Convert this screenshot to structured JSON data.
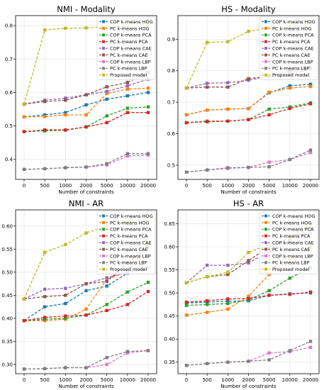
{
  "colors": {
    "COP k-means HOG": "#1f77b4",
    "PC k-means HOG": "#ff7f0e",
    "COP k-means PCA": "#2ca02c",
    "PC k-means PCA": "#d62728",
    "COP k-means CAE": "#9467bd",
    "PC k-means CAE": "#8c564b",
    "COP k-means LBP": "#e377c2",
    "PC k-means LBP": "#7f7f7f",
    "Proposed model": "#bcbd22"
  },
  "chart_data": [
    {
      "type": "line",
      "title": "NMI - Modality",
      "xlabel": "Number of constraints",
      "ylabel": "",
      "categories": [
        "0",
        "500",
        "1000",
        "2000",
        "5000",
        "10000",
        "20000"
      ],
      "ylim": [
        0.34,
        0.83
      ],
      "yticks": [
        "0.4",
        "0.5",
        "0.6",
        "0.7",
        "0.8"
      ],
      "grid": true,
      "legend_position": "top-right",
      "series": [
        {
          "name": "COP k-means HOG",
          "values": [
            0.527,
            0.533,
            0.54,
            0.563,
            0.58,
            0.59,
            0.6
          ]
        },
        {
          "name": "PC k-means HOG",
          "values": [
            0.527,
            0.528,
            0.533,
            0.533,
            0.597,
            0.61,
            0.613
          ]
        },
        {
          "name": "COP k-means PCA",
          "values": [
            0.483,
            0.485,
            0.487,
            0.497,
            0.53,
            0.553,
            0.557
          ]
        },
        {
          "name": "PC k-means PCA",
          "values": [
            0.483,
            0.488,
            0.488,
            0.497,
            0.51,
            0.54,
            0.54
          ]
        },
        {
          "name": "COP k-means CAE",
          "values": [
            0.565,
            0.577,
            0.583,
            0.593,
            0.603,
            0.62,
            0.64
          ]
        },
        {
          "name": "PC k-means CAE",
          "values": [
            0.565,
            0.573,
            0.577,
            0.593,
            0.617,
            0.63,
            0.66
          ]
        },
        {
          "name": "COP k-means LBP",
          "values": [
            0.37,
            0.372,
            0.375,
            0.377,
            0.383,
            0.41,
            0.413
          ]
        },
        {
          "name": "PC k-means LBP",
          "values": [
            0.37,
            0.372,
            0.375,
            0.377,
            0.387,
            0.417,
            0.417
          ]
        },
        {
          "name": "Proposed model",
          "values": [
            0.565,
            0.787,
            0.792,
            0.793,
            0.797,
            0.798,
            0.8
          ]
        }
      ]
    },
    {
      "type": "line",
      "title": "HS - Modality",
      "xlabel": "Number of constraints",
      "ylabel": "",
      "categories": [
        "0",
        "500",
        "1000",
        "2000",
        "5000",
        "10000",
        "20000"
      ],
      "ylim": [
        0.455,
        0.975
      ],
      "yticks": [
        "0.5",
        "0.6",
        "0.7",
        "0.8",
        "0.9"
      ],
      "grid": true,
      "legend_position": "top-right",
      "series": [
        {
          "name": "COP k-means HOG",
          "values": [
            0.66,
            0.675,
            0.678,
            0.68,
            0.73,
            0.752,
            0.757
          ]
        },
        {
          "name": "PC k-means HOG",
          "values": [
            0.66,
            0.675,
            0.678,
            0.68,
            0.732,
            0.745,
            0.75
          ]
        },
        {
          "name": "COP k-means PCA",
          "values": [
            0.635,
            0.64,
            0.64,
            0.645,
            0.678,
            0.685,
            0.698
          ]
        },
        {
          "name": "PC k-means PCA",
          "values": [
            0.635,
            0.638,
            0.64,
            0.645,
            0.66,
            0.68,
            0.695
          ]
        },
        {
          "name": "COP k-means CAE",
          "values": [
            0.745,
            0.76,
            0.762,
            0.77,
            0.782,
            0.79,
            0.805
          ]
        },
        {
          "name": "PC k-means CAE",
          "values": [
            0.745,
            0.748,
            0.748,
            0.775,
            0.782,
            0.8,
            0.81
          ]
        },
        {
          "name": "COP k-means LBP",
          "values": [
            0.478,
            0.485,
            0.49,
            0.493,
            0.51,
            0.518,
            0.54
          ]
        },
        {
          "name": "PC k-means LBP",
          "values": [
            0.478,
            0.485,
            0.492,
            0.493,
            0.495,
            0.518,
            0.548
          ]
        },
        {
          "name": "Proposed model",
          "values": [
            0.745,
            0.89,
            0.892,
            0.925,
            0.935,
            0.94,
            0.945
          ]
        }
      ]
    },
    {
      "type": "line",
      "title": "NMI - AR",
      "xlabel": "Number of constraints",
      "ylabel": "",
      "categories": [
        "0",
        "500",
        "1000",
        "2000",
        "5000",
        "10000",
        "20000"
      ],
      "ylim": [
        0.28,
        0.635
      ],
      "yticks": [
        "0.30",
        "0.35",
        "0.40",
        "0.45",
        "0.50",
        "0.55",
        "0.60"
      ],
      "grid": true,
      "legend_position": "top-right",
      "series": [
        {
          "name": "COP k-means HOG",
          "values": [
            0.395,
            0.425,
            0.432,
            0.46,
            0.47,
            0.498,
            0.51
          ]
        },
        {
          "name": "PC k-means HOG",
          "values": [
            0.395,
            0.395,
            0.398,
            0.42,
            0.485,
            0.5,
            0.56
          ]
        },
        {
          "name": "COP k-means PCA",
          "values": [
            0.395,
            0.398,
            0.4,
            0.407,
            0.43,
            0.457,
            0.478
          ]
        },
        {
          "name": "PC k-means PCA",
          "values": [
            0.395,
            0.402,
            0.405,
            0.407,
            0.417,
            0.43,
            0.458
          ]
        },
        {
          "name": "COP k-means CAE",
          "values": [
            0.442,
            0.463,
            0.465,
            0.475,
            0.488,
            0.5,
            0.51
          ]
        },
        {
          "name": "PC k-means CAE",
          "values": [
            0.442,
            0.447,
            0.45,
            0.475,
            0.48,
            0.52,
            0.555
          ]
        },
        {
          "name": "COP k-means LBP",
          "values": [
            0.29,
            0.291,
            0.293,
            0.293,
            0.3,
            0.325,
            0.33
          ]
        },
        {
          "name": "PC k-means LBP",
          "values": [
            0.29,
            0.291,
            0.293,
            0.293,
            0.315,
            0.328,
            0.33
          ]
        },
        {
          "name": "Proposed model",
          "values": [
            0.442,
            0.543,
            0.56,
            0.585,
            0.6,
            0.61,
            0.615
          ]
        }
      ]
    },
    {
      "type": "line",
      "title": "HS - AR",
      "xlabel": "Number of constraints",
      "ylabel": "",
      "categories": [
        "0",
        "500",
        "1000",
        "2000",
        "5000",
        "10000",
        "20000"
      ],
      "ylim": [
        0.325,
        0.68
      ],
      "yticks": [
        "0.35",
        "0.40",
        "0.45",
        "0.50",
        "0.55",
        "0.60",
        "0.65"
      ],
      "grid": true,
      "legend_position": "top-right",
      "series": [
        {
          "name": "COP k-means HOG",
          "values": [
            0.478,
            0.48,
            0.482,
            0.483,
            0.495,
            0.498,
            0.5
          ]
        },
        {
          "name": "PC k-means HOG",
          "values": [
            0.452,
            0.458,
            0.465,
            0.493,
            0.54,
            0.57,
            0.6
          ]
        },
        {
          "name": "COP k-means PCA",
          "values": [
            0.473,
            0.475,
            0.477,
            0.485,
            0.505,
            0.532,
            0.555
          ]
        },
        {
          "name": "PC k-means PCA",
          "values": [
            0.48,
            0.483,
            0.487,
            0.488,
            0.495,
            0.497,
            0.502
          ]
        },
        {
          "name": "COP k-means CAE",
          "values": [
            0.522,
            0.56,
            0.56,
            0.565,
            0.59,
            0.61,
            0.63
          ]
        },
        {
          "name": "PC k-means CAE",
          "values": [
            0.522,
            0.535,
            0.54,
            0.57,
            0.6,
            0.615,
            0.64
          ]
        },
        {
          "name": "COP k-means LBP",
          "values": [
            0.343,
            0.347,
            0.35,
            0.352,
            0.37,
            0.373,
            0.382
          ]
        },
        {
          "name": "PC k-means LBP",
          "values": [
            0.343,
            0.347,
            0.35,
            0.352,
            0.355,
            0.375,
            0.395
          ]
        },
        {
          "name": "Proposed model",
          "values": [
            0.522,
            0.535,
            0.545,
            0.588,
            0.605,
            0.62,
            0.65
          ]
        }
      ]
    }
  ]
}
